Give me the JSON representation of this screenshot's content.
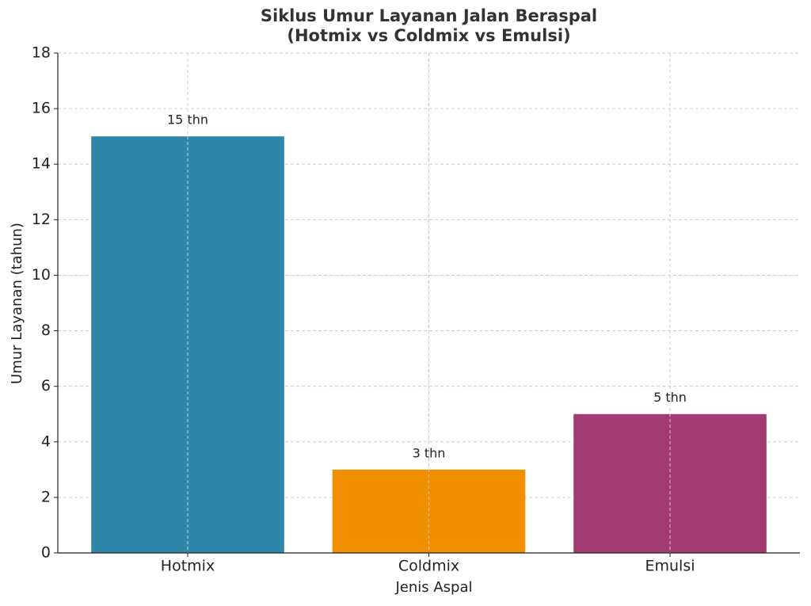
{
  "chart_data": {
    "type": "bar",
    "title": "Siklus Umur Layanan Jalan Beraspal\n(Hotmix vs Coldmix vs Emulsi)",
    "x_label": "Jenis Aspal",
    "y_label": "Umur Layanan (tahun)",
    "categories": [
      "Hotmix",
      "Coldmix",
      "Emulsi"
    ],
    "values": [
      15,
      3,
      5
    ],
    "value_labels": [
      "15 thn",
      "3 thn",
      "5 thn"
    ],
    "colors": [
      "#2e86ab",
      "#f18f01",
      "#a23b72"
    ],
    "ylim": [
      0,
      18
    ],
    "yticks": [
      0,
      2,
      4,
      6,
      8,
      10,
      12,
      14,
      16,
      18
    ],
    "grid": true
  }
}
